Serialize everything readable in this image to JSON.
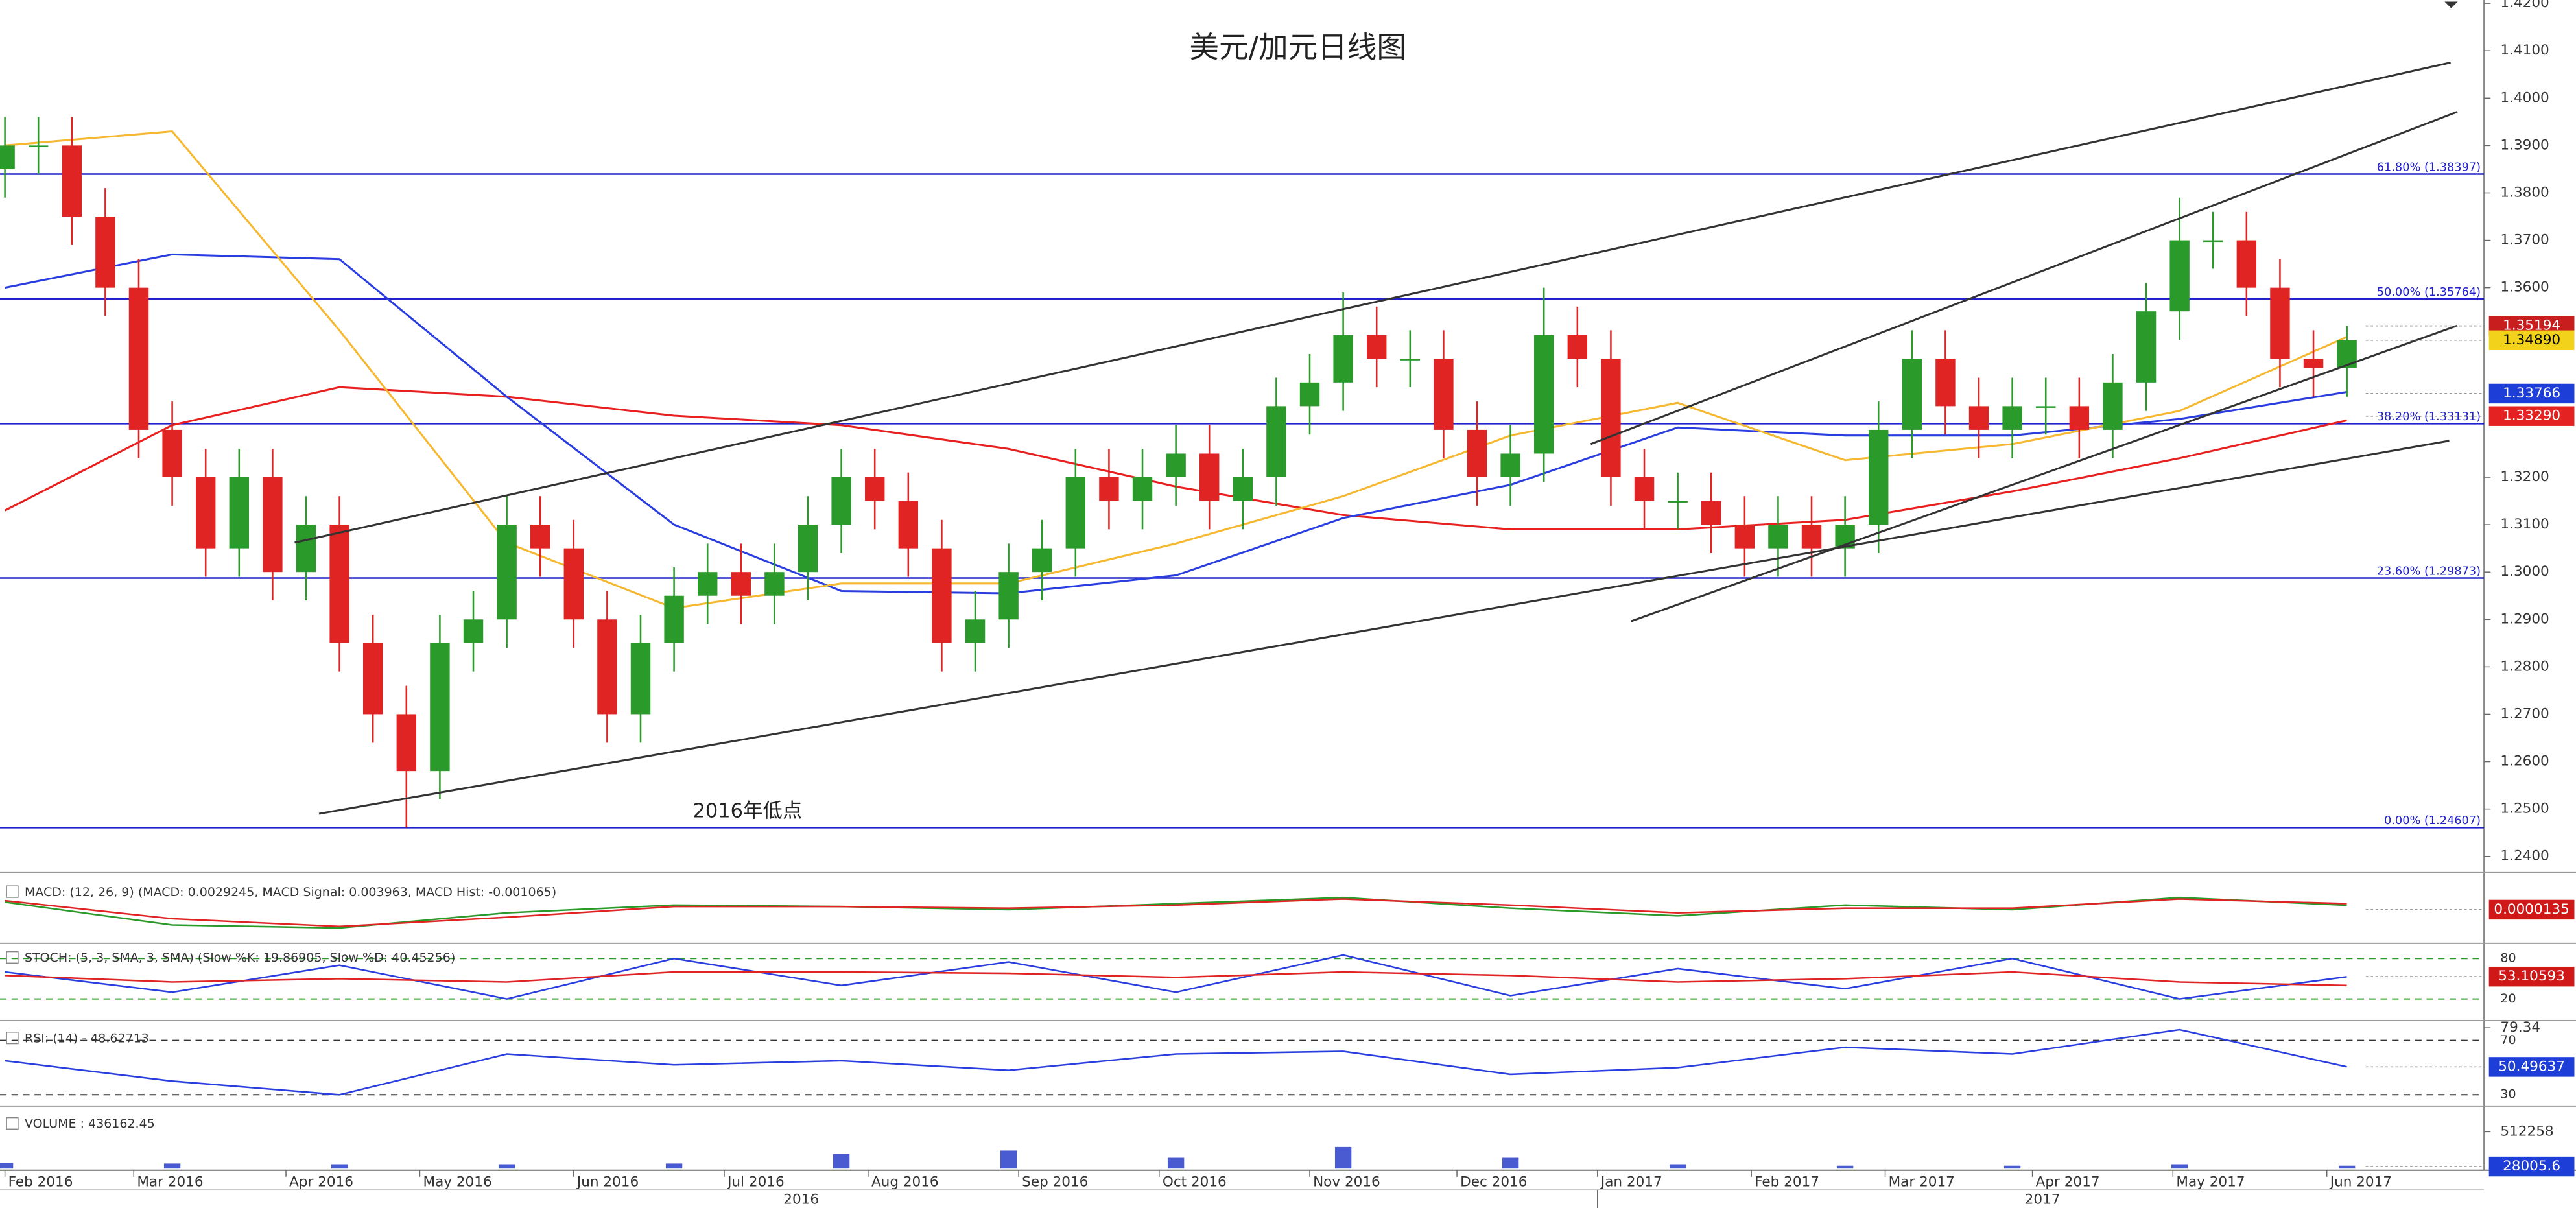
{
  "chart_data": [
    {
      "type": "candlestick",
      "title": "美元/加元日线图",
      "annotation": "2016年低点",
      "x": [
        0,
        1,
        2,
        3,
        4,
        5,
        6,
        7,
        8,
        9,
        10,
        11,
        12,
        13,
        14,
        15,
        16,
        17,
        18,
        19,
        20,
        21,
        22,
        23,
        24,
        25,
        26,
        27,
        28,
        29,
        30,
        31,
        32,
        33,
        34,
        35,
        36,
        37,
        38,
        39,
        40,
        41,
        42,
        43,
        44,
        45,
        46,
        47,
        48,
        49,
        50,
        51,
        52,
        53,
        54,
        55,
        56,
        57,
        58,
        59,
        60,
        61,
        62,
        63,
        64,
        65,
        66,
        67,
        68,
        69,
        70
      ],
      "open": [
        1.385,
        1.39,
        1.39,
        1.375,
        1.36,
        1.33,
        1.32,
        1.305,
        1.32,
        1.3,
        1.31,
        1.285,
        1.27,
        1.258,
        1.285,
        1.29,
        1.31,
        1.305,
        1.29,
        1.27,
        1.285,
        1.295,
        1.3,
        1.295,
        1.3,
        1.31,
        1.32,
        1.315,
        1.305,
        1.285,
        1.29,
        1.3,
        1.305,
        1.32,
        1.315,
        1.32,
        1.325,
        1.315,
        1.32,
        1.335,
        1.34,
        1.35,
        1.345,
        1.345,
        1.33,
        1.32,
        1.325,
        1.35,
        1.345,
        1.32,
        1.315,
        1.315,
        1.31,
        1.305,
        1.31,
        1.305,
        1.31,
        1.33,
        1.345,
        1.335,
        1.33,
        1.335,
        1.335,
        1.33,
        1.34,
        1.355,
        1.37,
        1.37,
        1.36,
        1.345,
        1.343
      ],
      "high": [
        1.396,
        1.396,
        1.396,
        1.381,
        1.366,
        1.336,
        1.326,
        1.326,
        1.326,
        1.316,
        1.316,
        1.291,
        1.276,
        1.291,
        1.296,
        1.316,
        1.316,
        1.311,
        1.296,
        1.291,
        1.301,
        1.306,
        1.306,
        1.306,
        1.316,
        1.326,
        1.326,
        1.321,
        1.311,
        1.296,
        1.306,
        1.311,
        1.326,
        1.326,
        1.326,
        1.331,
        1.331,
        1.326,
        1.341,
        1.346,
        1.359,
        1.356,
        1.351,
        1.351,
        1.336,
        1.331,
        1.36,
        1.356,
        1.351,
        1.326,
        1.321,
        1.321,
        1.316,
        1.316,
        1.316,
        1.316,
        1.336,
        1.351,
        1.351,
        1.341,
        1.341,
        1.341,
        1.341,
        1.346,
        1.361,
        1.379,
        1.376,
        1.376,
        1.366,
        1.351,
        1.352
      ],
      "low": [
        1.379,
        1.384,
        1.369,
        1.354,
        1.324,
        1.314,
        1.299,
        1.299,
        1.294,
        1.294,
        1.279,
        1.264,
        1.2461,
        1.252,
        1.279,
        1.284,
        1.299,
        1.284,
        1.264,
        1.264,
        1.279,
        1.289,
        1.289,
        1.289,
        1.294,
        1.304,
        1.309,
        1.299,
        1.279,
        1.279,
        1.284,
        1.294,
        1.299,
        1.309,
        1.309,
        1.314,
        1.309,
        1.309,
        1.314,
        1.329,
        1.334,
        1.339,
        1.339,
        1.324,
        1.314,
        1.314,
        1.319,
        1.339,
        1.314,
        1.309,
        1.309,
        1.304,
        1.299,
        1.299,
        1.299,
        1.299,
        1.304,
        1.324,
        1.329,
        1.324,
        1.324,
        1.329,
        1.324,
        1.324,
        1.334,
        1.349,
        1.364,
        1.354,
        1.339,
        1.337,
        1.337
      ],
      "close": [
        1.39,
        1.39,
        1.375,
        1.36,
        1.33,
        1.32,
        1.305,
        1.32,
        1.3,
        1.31,
        1.285,
        1.27,
        1.258,
        1.285,
        1.29,
        1.31,
        1.305,
        1.29,
        1.27,
        1.285,
        1.295,
        1.3,
        1.295,
        1.3,
        1.31,
        1.32,
        1.315,
        1.305,
        1.285,
        1.29,
        1.3,
        1.305,
        1.32,
        1.315,
        1.32,
        1.325,
        1.315,
        1.32,
        1.335,
        1.34,
        1.35,
        1.345,
        1.345,
        1.33,
        1.32,
        1.325,
        1.35,
        1.345,
        1.32,
        1.315,
        1.315,
        1.31,
        1.305,
        1.31,
        1.305,
        1.31,
        1.33,
        1.345,
        1.335,
        1.33,
        1.335,
        1.335,
        1.33,
        1.34,
        1.355,
        1.37,
        1.37,
        1.36,
        1.345,
        1.343,
        1.3489
      ],
      "up_color": "#2a9a2a",
      "down_color": "#e02424",
      "xlim": [
        0,
        74
      ],
      "ylim": [
        1.2369,
        1.4207
      ],
      "yticks": [
        {
          "value": 1.42,
          "label": "1.4200"
        },
        {
          "value": 1.41,
          "label": "1.4100"
        },
        {
          "value": 1.4,
          "label": "1.4000"
        },
        {
          "value": 1.39,
          "label": "1.3900"
        },
        {
          "value": 1.38,
          "label": "1.3800"
        },
        {
          "value": 1.37,
          "label": "1.3700"
        },
        {
          "value": 1.36,
          "label": "1.3600"
        },
        {
          "value": 1.32,
          "label": "1.3200"
        },
        {
          "value": 1.31,
          "label": "1.3100"
        },
        {
          "value": 1.3,
          "label": "1.3000"
        },
        {
          "value": 1.29,
          "label": "1.2900"
        },
        {
          "value": 1.28,
          "label": "1.2800"
        },
        {
          "value": 1.27,
          "label": "1.2700"
        },
        {
          "value": 1.26,
          "label": "1.2600"
        },
        {
          "value": 1.25,
          "label": "1.2500"
        },
        {
          "value": 1.24,
          "label": "1.2400"
        }
      ],
      "xticks": [
        {
          "value": 0,
          "label": "Feb 2016"
        },
        {
          "value": 3.85,
          "label": "Mar 2016"
        },
        {
          "value": 8.4,
          "label": "Apr 2016"
        },
        {
          "value": 12.4,
          "label": "May 2016"
        },
        {
          "value": 17,
          "label": "Jun 2016"
        },
        {
          "value": 21.5,
          "label": "Jul 2016"
        },
        {
          "value": 25.8,
          "label": "Aug 2016"
        },
        {
          "value": 30.3,
          "label": "Sep 2016"
        },
        {
          "value": 34.5,
          "label": "Oct 2016"
        },
        {
          "value": 39,
          "label": "Nov 2016"
        },
        {
          "value": 43.4,
          "label": "Dec 2016"
        },
        {
          "value": 47.6,
          "label": "Jan 2017"
        },
        {
          "value": 52.2,
          "label": "Feb 2017"
        },
        {
          "value": 56.2,
          "label": "Mar 2017"
        },
        {
          "value": 60.6,
          "label": "Apr 2017"
        },
        {
          "value": 64.8,
          "label": "May 2017"
        },
        {
          "value": 69.4,
          "label": "Jun 2017"
        }
      ],
      "year_ticks": [
        {
          "value": 23.8,
          "label": "2016"
        },
        {
          "value": 60.9,
          "label": "2017"
        }
      ],
      "fib_color": "#2222cc",
      "fib_levels": [
        {
          "value": 1.38397,
          "label": "61.80% (1.38397)"
        },
        {
          "value": 1.35764,
          "label": "50.00% (1.35764)"
        },
        {
          "value": 1.33131,
          "label": "38.20% (1.33131)"
        },
        {
          "value": 1.29873,
          "label": "23.60% (1.29873)"
        },
        {
          "value": 1.24607,
          "label": "0.00% (1.24607)"
        }
      ],
      "trend_color": "#333333",
      "trend_lines": [
        {
          "x": [
            8.66,
            73.1
          ],
          "y": [
            1.3062,
            1.4075
          ]
        },
        {
          "x": [
            9.39,
            73.06
          ],
          "y": [
            1.249,
            1.3277
          ]
        },
        {
          "x": [
            47.4,
            73.3
          ],
          "y": [
            1.327,
            1.3971
          ]
        },
        {
          "x": [
            48.6,
            73.3
          ],
          "y": [
            1.2896,
            1.352
          ]
        }
      ],
      "moving_averages": [
        {
          "color": "#e82020",
          "x": [
            0,
            5,
            10,
            15,
            20,
            25,
            30,
            35,
            40,
            45,
            50,
            55,
            60,
            65,
            70
          ],
          "values": [
            1.313,
            1.331,
            1.339,
            1.337,
            1.333,
            1.331,
            1.326,
            1.318,
            1.312,
            1.309,
            1.309,
            1.311,
            1.317,
            1.324,
            1.332
          ]
        },
        {
          "color": "#2a3ee0",
          "x": [
            0,
            5,
            10,
            15,
            20,
            25,
            30,
            35,
            40,
            45,
            50,
            55,
            60,
            65,
            70
          ],
          "values": [
            1.36,
            1.367,
            1.366,
            1.337,
            1.31,
            1.296,
            1.2955,
            1.2993,
            1.3114,
            1.3184,
            1.3305,
            1.3288,
            1.3288,
            1.3323,
            1.338
          ]
        },
        {
          "color": "#f5b830",
          "x": [
            0,
            5,
            10,
            15,
            20,
            25,
            30,
            35,
            40,
            45,
            50,
            55,
            60,
            65,
            70
          ],
          "values": [
            1.39,
            1.393,
            1.351,
            1.3062,
            1.2924,
            1.2976,
            1.2976,
            1.306,
            1.316,
            1.3288,
            1.3357,
            1.3236,
            1.327,
            1.334,
            1.3496
          ]
        }
      ],
      "price_markers": [
        {
          "value": 1.35194,
          "label": "1.35194",
          "color": "#c81e1e"
        },
        {
          "value": 1.3489,
          "label": "1.34890",
          "color": "#f2d21a"
        },
        {
          "value": 1.33766,
          "label": "1.33766",
          "color": "#1e3ed8"
        },
        {
          "value": 1.3329,
          "label": "1.33290",
          "color": "#e42222"
        }
      ]
    },
    {
      "type": "line",
      "title": "MACD: (12, 26, 9) (MACD: 0.0029245, MACD Signal: 0.003963, MACD Hist: -0.001065)",
      "x": [
        0,
        5,
        10,
        15,
        20,
        25,
        30,
        35,
        40,
        45,
        50,
        55,
        60,
        65,
        70
      ],
      "ylim": [
        -0.02,
        0.02
      ],
      "series": [
        {
          "color": "#2a9a2a",
          "values": [
            0.005,
            -0.01,
            -0.012,
            -0.002,
            0.003,
            0.002,
            0.0,
            0.004,
            0.008,
            0.001,
            -0.004,
            0.003,
            0.0,
            0.008,
            0.0029
          ]
        },
        {
          "color": "#e02424",
          "values": [
            0.006,
            -0.006,
            -0.011,
            -0.005,
            0.002,
            0.002,
            0.001,
            0.003,
            0.007,
            0.003,
            -0.002,
            0.001,
            0.001,
            0.007,
            0.004
          ]
        }
      ],
      "marker": {
        "value": 1.35e-05,
        "label": "0.0000135",
        "color": "#d01818"
      }
    },
    {
      "type": "line",
      "title": "STOCH: (5, 3, SMA, 3, SMA) (Slow %K: 19.86905, Slow %D: 40.45256)",
      "x": [
        0,
        5,
        10,
        15,
        20,
        25,
        30,
        35,
        40,
        45,
        50,
        55,
        60,
        65,
        70
      ],
      "ylim": [
        0,
        100
      ],
      "levels": [
        80,
        20
      ],
      "level_color": "#2a9a2a",
      "series": [
        {
          "color": "#2a3ee0",
          "values": [
            60,
            30,
            70,
            20,
            80,
            40,
            75,
            30,
            85,
            25,
            65,
            35,
            80,
            20,
            53
          ]
        },
        {
          "color": "#e02424",
          "values": [
            55,
            45,
            50,
            45,
            60,
            60,
            58,
            52,
            60,
            55,
            45,
            50,
            60,
            45,
            40
          ]
        }
      ],
      "marker": {
        "value": 53.10593,
        "label": "53.10593",
        "color": "#d01818"
      }
    },
    {
      "type": "line",
      "title": "RSI: (14) - 48.62713",
      "x": [
        0,
        5,
        10,
        15,
        20,
        25,
        30,
        35,
        40,
        45,
        50,
        55,
        60,
        65,
        70
      ],
      "ylim": [
        24,
        81
      ],
      "levels": [
        70,
        30
      ],
      "level_color": "#333333",
      "yticks": [
        79.34
      ],
      "series": [
        {
          "color": "#2a3ee0",
          "values": [
            55,
            40,
            30,
            60,
            52,
            55,
            48,
            60,
            62,
            45,
            50,
            65,
            60,
            78,
            50.5
          ]
        }
      ],
      "marker": {
        "value": 50.49637,
        "label": "50.49637",
        "color": "#1e3ed8"
      }
    },
    {
      "type": "bar",
      "title": "VOLUME : 436162.45",
      "color": "#4a5ad0",
      "x": [
        0,
        5,
        10,
        15,
        20,
        25,
        30,
        35,
        40,
        45,
        50,
        55,
        60,
        65,
        70
      ],
      "ylim": [
        0,
        800000
      ],
      "yticks": [
        512258
      ],
      "values": [
        80000,
        70000,
        60000,
        60000,
        70000,
        200000,
        250000,
        150000,
        300000,
        150000,
        60000,
        40000,
        40000,
        60000,
        40000
      ],
      "marker": {
        "value": 28005.6,
        "label": "28005.6",
        "color": "#1e3ed8"
      }
    }
  ]
}
